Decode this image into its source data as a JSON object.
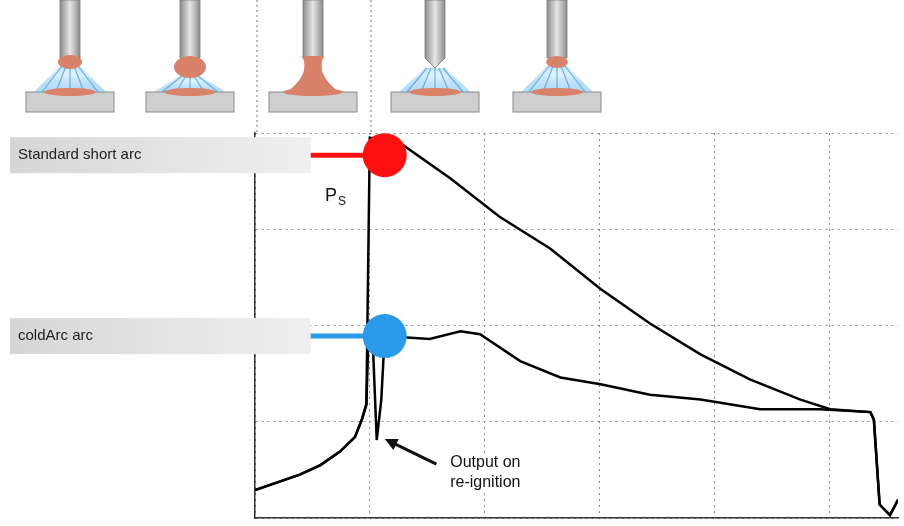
{
  "chart_data": {
    "type": "line",
    "xlim": [
      0,
      5.6
    ],
    "ylim": [
      0,
      4
    ],
    "xticks": [
      0,
      1,
      2,
      3,
      4,
      5
    ],
    "yticks": [
      0,
      1,
      2,
      3,
      4
    ],
    "grid": true,
    "tick_labels": false,
    "series": [
      {
        "name": "Standard short arc",
        "color": "#000000",
        "highlight": {
          "x": 1.13,
          "y": 3.77,
          "color": "#ff1010"
        },
        "x": [
          0.0,
          0.22,
          0.39,
          0.57,
          0.74,
          0.87,
          0.93,
          0.97,
          1.0,
          1.26,
          1.7,
          2.13,
          2.57,
          3.01,
          3.44,
          3.88,
          4.31,
          4.75,
          5.01,
          5.36,
          5.39,
          5.44,
          5.53,
          5.6
        ],
        "values": [
          0.29,
          0.38,
          0.45,
          0.55,
          0.69,
          0.84,
          1.02,
          1.18,
          3.95,
          3.9,
          3.53,
          3.13,
          2.8,
          2.38,
          2.02,
          1.7,
          1.44,
          1.23,
          1.13,
          1.1,
          1.02,
          0.14,
          0.03,
          0.19
        ]
      },
      {
        "name": "coldArc arc",
        "color": "#000000",
        "highlight": {
          "x": 1.13,
          "y": 1.89,
          "color": "#2a9be8"
        },
        "x": [
          0.0,
          0.22,
          0.39,
          0.57,
          0.74,
          0.87,
          0.93,
          0.97,
          0.99,
          1.03,
          1.06,
          1.1,
          1.13,
          1.26,
          1.52,
          1.79,
          1.96,
          2.31,
          2.66,
          3.01,
          3.44,
          3.88,
          4.4,
          4.92,
          5.36,
          5.39,
          5.44,
          5.53,
          5.6
        ],
        "values": [
          0.29,
          0.38,
          0.45,
          0.55,
          0.69,
          0.84,
          1.02,
          1.18,
          1.96,
          1.7,
          0.81,
          1.23,
          1.91,
          1.88,
          1.86,
          1.94,
          1.91,
          1.63,
          1.46,
          1.39,
          1.28,
          1.23,
          1.13,
          1.13,
          1.1,
          1.02,
          0.14,
          0.03,
          0.19
        ]
      }
    ],
    "annotations": [
      {
        "text": "P",
        "subscript": "S",
        "x": 0.61,
        "y": 3.35
      },
      {
        "text": "Output on re-ignition",
        "x": 1.7,
        "y": 0.66,
        "arrow_from": {
          "x": 1.58,
          "y": 0.56
        },
        "arrow_to": {
          "x": 1.13,
          "y": 0.82
        }
      }
    ]
  }
}
